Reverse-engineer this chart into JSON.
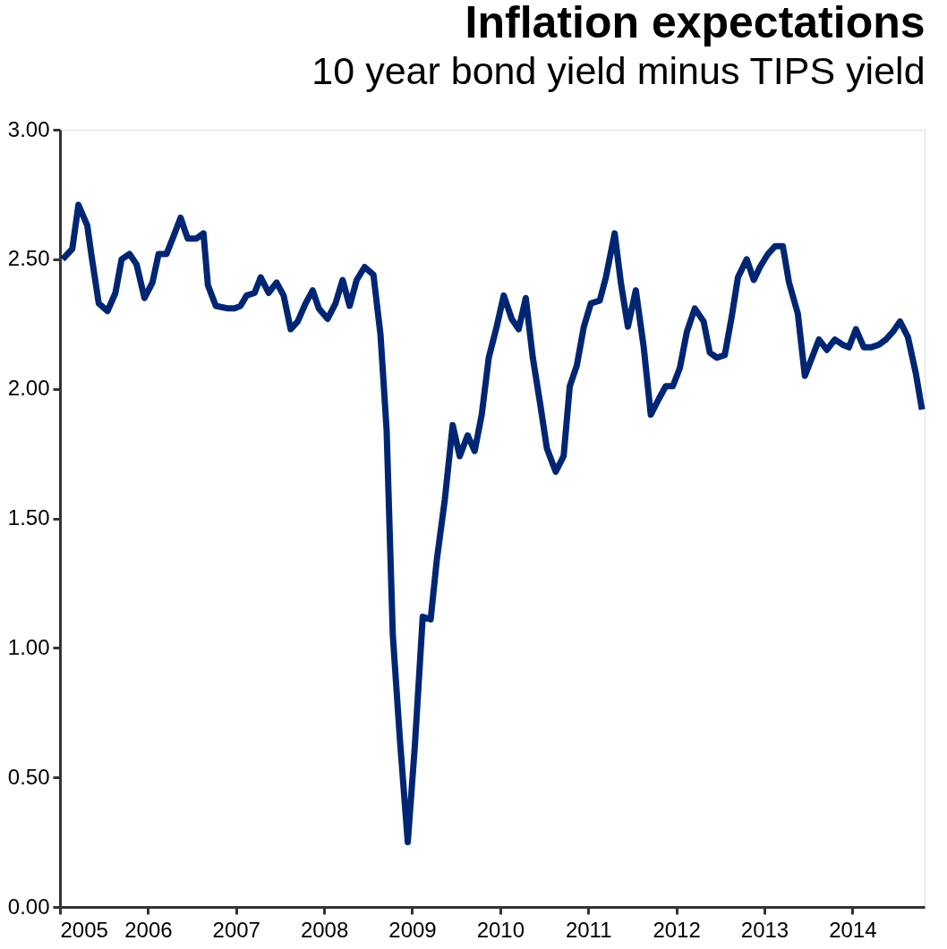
{
  "chart_data": {
    "type": "line",
    "title": "Inflation expectations",
    "subtitle": "10 year bond yield minus TIPS yield",
    "x": [
      2005.03,
      2005.14,
      2005.21,
      2005.31,
      2005.36,
      2005.44,
      2005.54,
      2005.63,
      2005.7,
      2005.79,
      2005.87,
      2005.96,
      2006.05,
      2006.12,
      2006.21,
      2006.28,
      2006.37,
      2006.45,
      2006.55,
      2006.63,
      2006.68,
      2006.77,
      2006.91,
      2006.98,
      2007.05,
      2007.12,
      2007.21,
      2007.28,
      2007.37,
      2007.46,
      2007.54,
      2007.62,
      2007.7,
      2007.79,
      2007.87,
      2007.94,
      2008.04,
      2008.13,
      2008.21,
      2008.29,
      2008.37,
      2008.46,
      2008.56,
      2008.64,
      2008.71,
      2008.78,
      2008.86,
      2008.95,
      2009.03,
      2009.12,
      2009.21,
      2009.28,
      2009.37,
      2009.46,
      2009.54,
      2009.63,
      2009.71,
      2009.79,
      2009.87,
      2009.96,
      2010.04,
      2010.13,
      2010.21,
      2010.29,
      2010.37,
      2010.45,
      2010.53,
      2010.63,
      2010.72,
      2010.79,
      2010.87,
      2010.95,
      2011.03,
      2011.13,
      2011.2,
      2011.3,
      2011.37,
      2011.45,
      2011.54,
      2011.63,
      2011.71,
      2011.8,
      2011.88,
      2011.96,
      2012.04,
      2012.12,
      2012.21,
      2012.31,
      2012.38,
      2012.46,
      2012.55,
      2012.63,
      2012.7,
      2012.8,
      2012.88,
      2012.95,
      2013.04,
      2013.12,
      2013.21,
      2013.28,
      2013.38,
      2013.46,
      2013.54,
      2013.62,
      2013.71,
      2013.8,
      2013.89,
      2013.96,
      2014.04,
      2014.13,
      2014.21,
      2014.3,
      2014.38,
      2014.46,
      2014.54,
      2014.63,
      2014.72,
      2014.79
    ],
    "series": [
      {
        "color": "#002673",
        "values": [
          2.5,
          2.54,
          2.71,
          2.63,
          2.51,
          2.33,
          2.3,
          2.37,
          2.5,
          2.52,
          2.48,
          2.35,
          2.41,
          2.52,
          2.52,
          2.58,
          2.66,
          2.58,
          2.58,
          2.6,
          2.4,
          2.32,
          2.31,
          2.31,
          2.32,
          2.36,
          2.37,
          2.43,
          2.37,
          2.41,
          2.36,
          2.23,
          2.26,
          2.33,
          2.38,
          2.31,
          2.27,
          2.33,
          2.42,
          2.32,
          2.42,
          2.47,
          2.44,
          2.21,
          1.84,
          1.05,
          0.65,
          0.25,
          0.62,
          1.12,
          1.11,
          1.34,
          1.57,
          1.86,
          1.74,
          1.82,
          1.76,
          1.9,
          2.12,
          2.24,
          2.36,
          2.27,
          2.23,
          2.35,
          2.12,
          1.95,
          1.77,
          1.68,
          1.74,
          2.01,
          2.09,
          2.24,
          2.33,
          2.34,
          2.43,
          2.6,
          2.41,
          2.24,
          2.38,
          2.16,
          1.9,
          1.96,
          2.01,
          2.01,
          2.08,
          2.22,
          2.31,
          2.26,
          2.14,
          2.12,
          2.13,
          2.28,
          2.43,
          2.5,
          2.42,
          2.47,
          2.52,
          2.55,
          2.55,
          2.41,
          2.29,
          2.05,
          2.12,
          2.19,
          2.15,
          2.19,
          2.17,
          2.16,
          2.23,
          2.16,
          2.16,
          2.17,
          2.19,
          2.22,
          2.26,
          2.2,
          2.06,
          1.92
        ]
      }
    ],
    "xlim": [
      2005,
      2014.82
    ],
    "xticks": [
      2005,
      2006,
      2007,
      2008,
      2009,
      2010,
      2011,
      2012,
      2013,
      2014
    ],
    "ylim": [
      0,
      3
    ],
    "yticks": [
      {
        "value": 0,
        "label": "0.00"
      },
      {
        "value": 0.5,
        "label": "0.50"
      },
      {
        "value": 1,
        "label": "1.00"
      },
      {
        "value": 1.5,
        "label": "1.50"
      },
      {
        "value": 2,
        "label": "2.00"
      },
      {
        "value": 2.5,
        "label": "2.50"
      },
      {
        "value": 3,
        "label": "3.00"
      }
    ],
    "grid": false,
    "marker": "none",
    "line_style": "solid"
  }
}
